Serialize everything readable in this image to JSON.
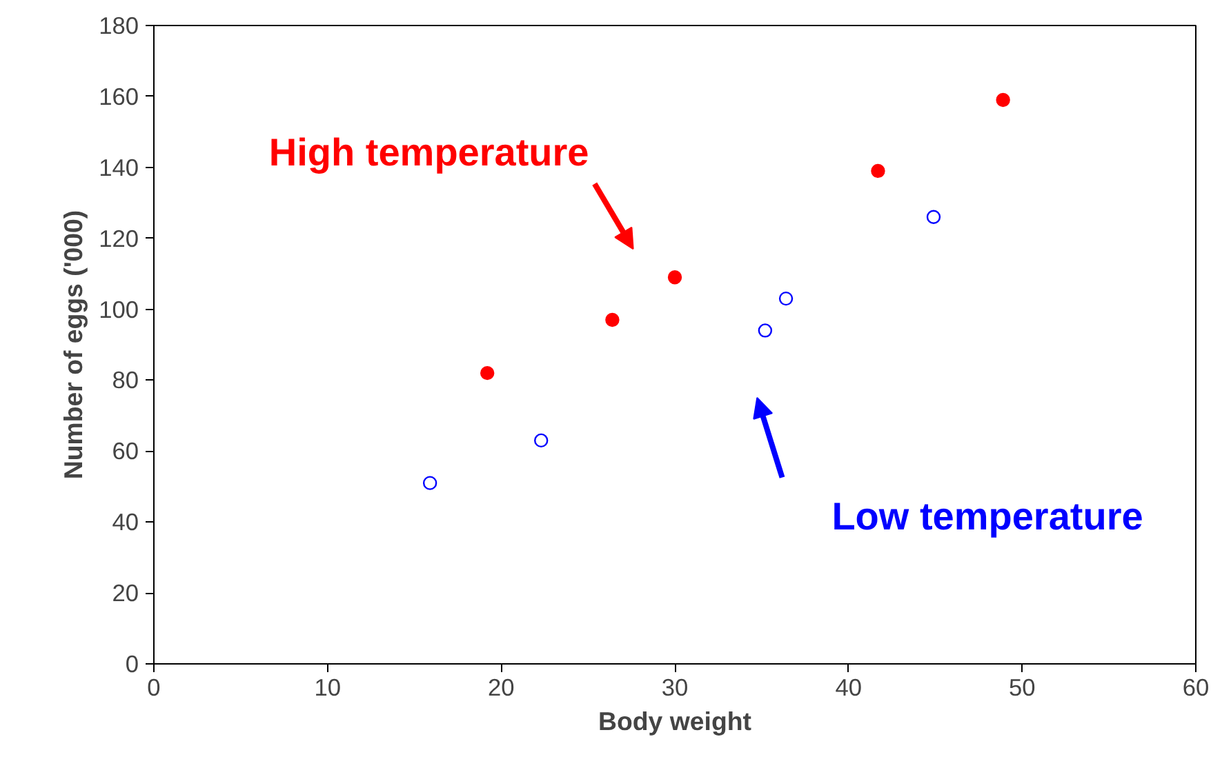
{
  "chart_data": {
    "type": "scatter",
    "xlabel": "Body weight",
    "ylabel": "Number of eggs ('000)",
    "xlim": [
      0,
      60
    ],
    "xticks": [
      0,
      10,
      20,
      30,
      40,
      50,
      60
    ],
    "ylim": [
      0,
      180
    ],
    "yticks": [
      0,
      20,
      40,
      60,
      80,
      100,
      120,
      140,
      160,
      180
    ],
    "grid": false,
    "marker": "circle",
    "series": [
      {
        "name": "High temperature",
        "color": "#ff0000",
        "x": [
          19.2,
          26.4,
          30.0,
          41.7,
          48.9
        ],
        "values": [
          82,
          97,
          109,
          139,
          159
        ]
      },
      {
        "name": "Low temperature",
        "color": "#0000ff",
        "x": [
          15.9,
          22.3,
          35.2,
          36.4,
          44.9
        ],
        "values": [
          51,
          63,
          94,
          103,
          126
        ]
      }
    ]
  }
}
